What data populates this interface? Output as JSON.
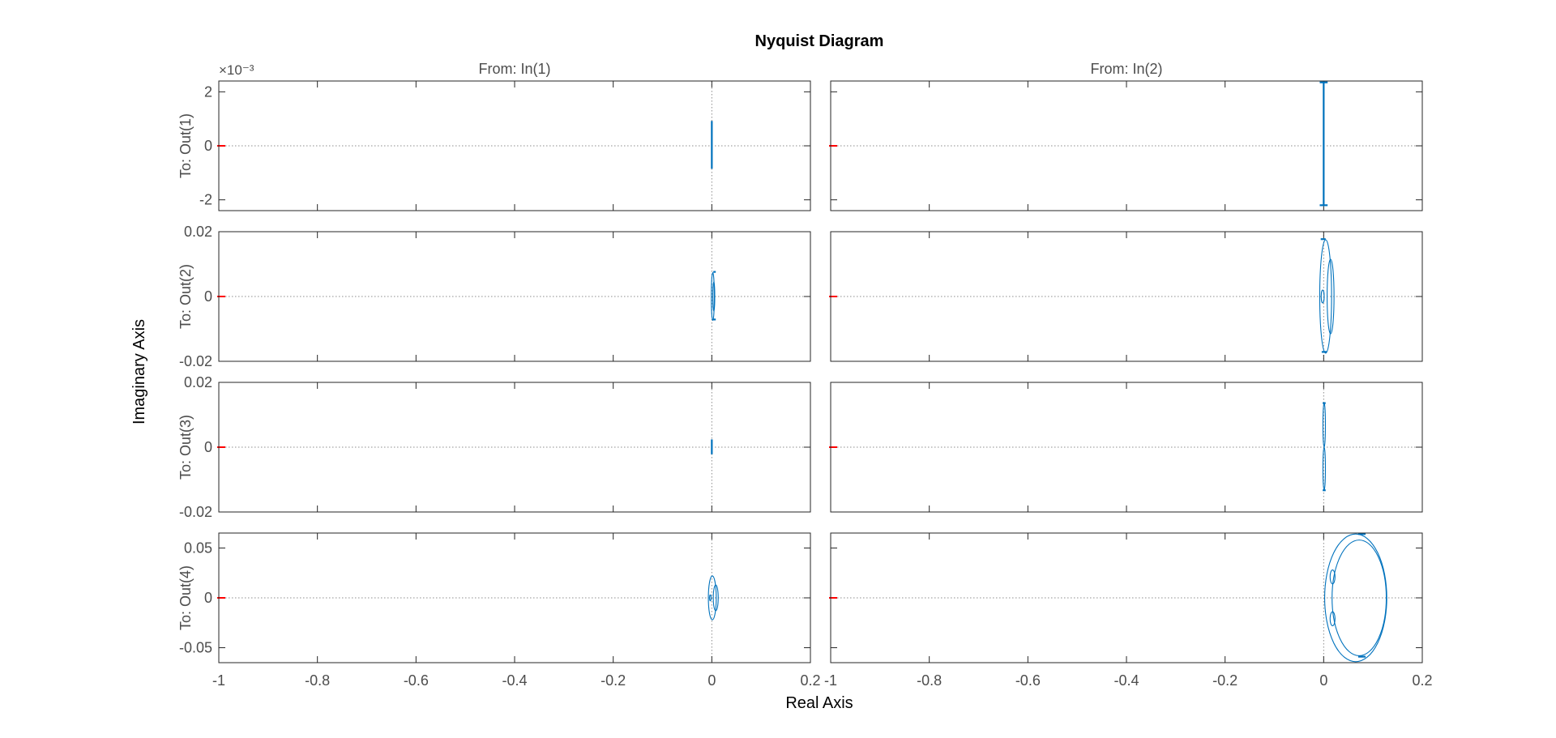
{
  "chart_data": {
    "type": "line",
    "title": "Nyquist Diagram",
    "xlabel": "Real Axis",
    "ylabel": "Imaginary Axis",
    "grid": false,
    "legend": "none",
    "colors": {
      "curve": "#0072bd",
      "critical_point": "#ff0000",
      "axes": "#262626",
      "tick_labels": "#4d4d4d",
      "zero_lines": "#8c8c8c"
    },
    "column_labels": [
      "From: In(1)",
      "From: In(2)"
    ],
    "row_labels": [
      "To: Out(1)",
      "To: Out(2)",
      "To: Out(3)",
      "To: Out(4)"
    ],
    "xlim": [
      -1,
      0.2
    ],
    "x_ticks": [
      "-1",
      "-0.8",
      "-0.6",
      "-0.4",
      "-0.2",
      "0",
      "0.2"
    ],
    "x_tick_values": [
      -1,
      -0.8,
      -0.6,
      -0.4,
      -0.2,
      0,
      0.2
    ],
    "rows": [
      {
        "ylim": [
          -0.0024,
          0.0024
        ],
        "y_ticks": [
          "-2",
          "0",
          "2"
        ],
        "y_tick_values": [
          -0.002,
          0,
          0.002
        ],
        "exponent_label": "×10⁻³"
      },
      {
        "ylim": [
          -0.02,
          0.02
        ],
        "y_ticks": [
          "-0.02",
          "0",
          "0.02"
        ],
        "y_tick_values": [
          -0.02,
          0,
          0.02
        ]
      },
      {
        "ylim": [
          -0.02,
          0.02
        ],
        "y_ticks": [
          "-0.02",
          "0",
          "0.02"
        ],
        "y_tick_values": [
          -0.02,
          0,
          0.02
        ]
      },
      {
        "ylim": [
          -0.065,
          0.065
        ],
        "y_ticks": [
          "-0.05",
          "0",
          "0.05"
        ],
        "y_tick_values": [
          -0.05,
          0,
          0.05
        ]
      }
    ],
    "panels": [
      {
        "row": 0,
        "col": 0,
        "curves": [
          {
            "kind": "segment",
            "x": [
              0,
              0
            ],
            "y": [
              -0.00085,
              0.00092
            ]
          }
        ]
      },
      {
        "row": 0,
        "col": 1,
        "curves": [
          {
            "kind": "segment",
            "x": [
              0,
              0
            ],
            "y": [
              -0.0022,
              0.0024
            ]
          },
          {
            "kind": "segment",
            "x": [
              -0.008,
              0.008
            ],
            "y": [
              0.00235,
              0.00235
            ]
          },
          {
            "kind": "segment",
            "x": [
              -0.008,
              0.008
            ],
            "y": [
              -0.0022,
              -0.0022
            ]
          }
        ]
      },
      {
        "row": 1,
        "col": 0,
        "curves": [
          {
            "kind": "ellipse",
            "cx": 0.002,
            "cy": 0,
            "rx": 0.003,
            "ry": 0.0074
          },
          {
            "kind": "ellipse",
            "cx": 0.004,
            "cy": 0,
            "rx": 0.002,
            "ry": 0.0045
          },
          {
            "kind": "segment",
            "x": [
              0.003,
              0.008
            ],
            "y": [
              0.0076,
              0.0076
            ]
          },
          {
            "kind": "segment",
            "x": [
              0.003,
              0.008
            ],
            "y": [
              -0.0071,
              -0.0071
            ]
          }
        ]
      },
      {
        "row": 1,
        "col": 1,
        "curves": [
          {
            "kind": "ellipse",
            "cx": 0.004,
            "cy": 0,
            "rx": 0.012,
            "ry": 0.0175
          },
          {
            "kind": "ellipse",
            "cx": 0.014,
            "cy": 0,
            "rx": 0.007,
            "ry": 0.0115
          },
          {
            "kind": "ellipse",
            "cx": -0.002,
            "cy": 0,
            "rx": 0.003,
            "ry": 0.002
          },
          {
            "kind": "segment",
            "x": [
              -0.006,
              0.004
            ],
            "y": [
              0.0177,
              0.0177
            ]
          },
          {
            "kind": "segment",
            "x": [
              -0.004,
              0.006
            ],
            "y": [
              -0.0171,
              -0.0171
            ]
          }
        ]
      },
      {
        "row": 2,
        "col": 0,
        "curves": [
          {
            "kind": "segment",
            "x": [
              0,
              0
            ],
            "y": [
              -0.0022,
              0.0024
            ]
          }
        ]
      },
      {
        "row": 2,
        "col": 1,
        "curves": [
          {
            "kind": "ellipse",
            "cx": 0.001,
            "cy": 0.0068,
            "rx": 0.0025,
            "ry": 0.0068
          },
          {
            "kind": "ellipse",
            "cx": 0.001,
            "cy": -0.0066,
            "rx": 0.0025,
            "ry": 0.0066
          },
          {
            "kind": "segment",
            "x": [
              -0.002,
              0.004
            ],
            "y": [
              0.0136,
              0.0136
            ]
          },
          {
            "kind": "segment",
            "x": [
              -0.002,
              0.004
            ],
            "y": [
              -0.0133,
              -0.0133
            ]
          }
        ]
      },
      {
        "row": 3,
        "col": 0,
        "curves": [
          {
            "kind": "ellipse",
            "cx": 0.001,
            "cy": 0,
            "rx": 0.008,
            "ry": 0.022
          },
          {
            "kind": "ellipse",
            "cx": 0.008,
            "cy": 0,
            "rx": 0.005,
            "ry": 0.013
          },
          {
            "kind": "ellipse",
            "cx": -0.003,
            "cy": 0,
            "rx": 0.0015,
            "ry": 0.003
          }
        ]
      },
      {
        "row": 3,
        "col": 1,
        "curves": [
          {
            "kind": "ellipse",
            "cx": 0.065,
            "cy": 0,
            "rx": 0.063,
            "ry": 0.064
          },
          {
            "kind": "ellipse",
            "cx": 0.072,
            "cy": 0,
            "rx": 0.055,
            "ry": 0.058
          },
          {
            "kind": "ellipse",
            "cx": 0.018,
            "cy": 0.021,
            "rx": 0.005,
            "ry": 0.007
          },
          {
            "kind": "ellipse",
            "cx": 0.018,
            "cy": -0.021,
            "rx": 0.005,
            "ry": 0.007
          },
          {
            "kind": "segment",
            "x": [
              0.07,
              0.085
            ],
            "y": [
              0.064,
              0.064
            ]
          },
          {
            "kind": "segment",
            "x": [
              0.07,
              0.085
            ],
            "y": [
              -0.059,
              -0.059
            ]
          }
        ]
      }
    ]
  }
}
